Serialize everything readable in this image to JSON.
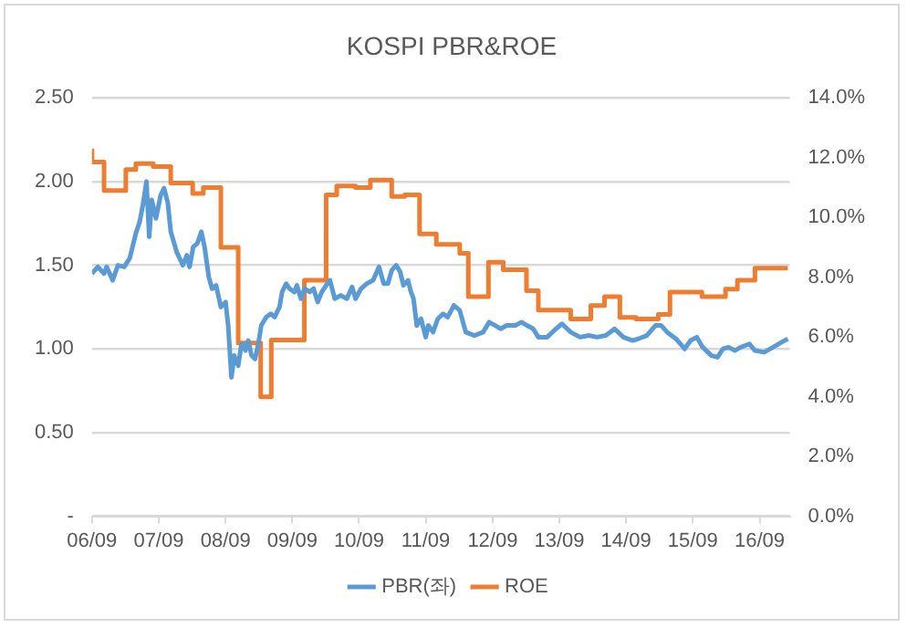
{
  "chart_data": {
    "type": "line",
    "title": "KOSPI PBR&ROE",
    "xlim": [
      "2006-09-01",
      "2017-02-13"
    ],
    "xticks": [
      {
        "value": "2006-09",
        "label": "06/09"
      },
      {
        "value": "2007-09",
        "label": "07/09"
      },
      {
        "value": "2008-09",
        "label": "08/09"
      },
      {
        "value": "2009-09",
        "label": "09/09"
      },
      {
        "value": "2010-09",
        "label": "10/09"
      },
      {
        "value": "2011-09",
        "label": "11/09"
      },
      {
        "value": "2012-09",
        "label": "12/09"
      },
      {
        "value": "2013-09",
        "label": "13/09"
      },
      {
        "value": "2014-09",
        "label": "14/09"
      },
      {
        "value": "2015-09",
        "label": "15/09"
      },
      {
        "value": "2016-09",
        "label": "16/09"
      }
    ],
    "ylim": [
      0,
      2.5
    ],
    "yticks": [
      {
        "value": 0,
        "label": "-"
      },
      {
        "value": 0.5,
        "label": "0.50"
      },
      {
        "value": 1,
        "label": "1.00"
      },
      {
        "value": 1.5,
        "label": "1.50"
      },
      {
        "value": 2,
        "label": "2.00"
      },
      {
        "value": 2.5,
        "label": "2.50"
      }
    ],
    "y2lim": [
      0,
      14
    ],
    "y2ticks": [
      {
        "value": 0,
        "label": "0.0%"
      },
      {
        "value": 2,
        "label": "2.0%"
      },
      {
        "value": 4,
        "label": "4.0%"
      },
      {
        "value": 6,
        "label": "6.0%"
      },
      {
        "value": 8,
        "label": "8.0%"
      },
      {
        "value": 10,
        "label": "10.0%"
      },
      {
        "value": 12,
        "label": "12.0%"
      },
      {
        "value": 14,
        "label": "14.0%"
      }
    ],
    "grid": "y",
    "legend": "bottom",
    "marker": "none",
    "line_style": "solid",
    "series": [
      {
        "name": "PBR(좌)",
        "type": "line",
        "color": "#5b9bd5",
        "x": [
          "2006-09-01",
          "2006-10-03",
          "2006-11-06",
          "2006-11-20",
          "2006-12-23",
          "2007-01-21",
          "2007-02-24",
          "2007-03-26",
          "2007-04-29",
          "2007-05-20",
          "2007-06-08",
          "2007-06-26",
          "2007-07-11",
          "2007-07-25",
          "2007-08-17",
          "2007-09-12",
          "2007-09-30",
          "2007-10-21",
          "2007-11-06",
          "2007-12-08",
          "2008-01-11",
          "2008-02-02",
          "2008-02-17",
          "2008-03-08",
          "2008-03-30",
          "2008-04-21",
          "2008-05-09",
          "2008-06-01",
          "2008-06-19",
          "2008-07-11",
          "2008-08-06",
          "2008-09-01",
          "2008-09-15",
          "2008-10-03",
          "2008-10-18",
          "2008-11-09",
          "2008-11-27",
          "2008-12-19",
          "2009-01-03",
          "2009-01-21",
          "2009-02-09",
          "2009-02-27",
          "2009-03-15",
          "2009-04-11",
          "2009-05-06",
          "2009-05-27",
          "2009-06-23",
          "2009-07-07",
          "2009-07-29",
          "2009-08-17",
          "2009-09-12",
          "2009-09-26",
          "2009-10-18",
          "2009-11-06",
          "2009-12-05",
          "2009-12-26",
          "2010-01-18",
          "2010-02-09",
          "2010-03-05",
          "2010-03-26",
          "2010-04-21",
          "2010-05-24",
          "2010-06-26",
          "2010-07-25",
          "2010-08-13",
          "2010-09-12",
          "2010-10-14",
          "2010-11-17",
          "2010-12-19",
          "2011-01-14",
          "2011-02-06",
          "2011-02-27",
          "2011-03-23",
          "2011-04-14",
          "2011-05-02",
          "2011-05-27",
          "2011-06-12",
          "2011-06-26",
          "2011-07-14",
          "2011-08-06",
          "2011-09-01",
          "2011-09-15",
          "2011-10-11",
          "2011-11-06",
          "2011-12-05",
          "2011-12-30",
          "2012-02-02",
          "2012-03-05",
          "2012-04-07",
          "2012-05-24",
          "2012-07-11",
          "2012-08-13",
          "2012-09-15",
          "2012-10-14",
          "2012-11-17",
          "2013-01-03",
          "2013-02-06",
          "2013-03-08",
          "2013-04-11",
          "2013-05-09",
          "2013-06-26",
          "2013-08-13",
          "2013-09-15",
          "2013-11-02",
          "2013-12-23",
          "2014-02-09",
          "2014-03-26",
          "2014-05-13",
          "2014-06-30",
          "2014-08-17",
          "2014-10-07",
          "2014-11-06",
          "2014-12-23",
          "2015-02-09",
          "2015-03-12",
          "2015-04-14",
          "2015-06-01",
          "2015-07-18",
          "2015-08-20",
          "2015-09-23",
          "2015-10-25",
          "2015-12-12",
          "2016-01-14",
          "2016-02-13",
          "2016-03-15",
          "2016-04-18",
          "2016-05-20",
          "2016-07-07",
          "2016-08-06",
          "2016-09-26",
          "2016-11-13",
          "2016-12-30",
          "2017-02-02"
        ],
        "values": [
          1.45,
          1.49,
          1.45,
          1.49,
          1.41,
          1.5,
          1.49,
          1.54,
          1.69,
          1.76,
          1.87,
          2.0,
          1.67,
          1.89,
          1.78,
          1.92,
          1.96,
          1.87,
          1.7,
          1.58,
          1.5,
          1.56,
          1.49,
          1.61,
          1.63,
          1.7,
          1.61,
          1.43,
          1.36,
          1.38,
          1.25,
          1.28,
          1.14,
          0.83,
          0.96,
          0.9,
          1.03,
          0.99,
          1.05,
          0.96,
          0.94,
          1.03,
          1.14,
          1.19,
          1.21,
          1.19,
          1.25,
          1.34,
          1.39,
          1.36,
          1.34,
          1.38,
          1.3,
          1.36,
          1.34,
          1.36,
          1.28,
          1.34,
          1.38,
          1.41,
          1.3,
          1.32,
          1.3,
          1.37,
          1.3,
          1.36,
          1.39,
          1.41,
          1.49,
          1.39,
          1.39,
          1.47,
          1.5,
          1.46,
          1.38,
          1.41,
          1.34,
          1.3,
          1.14,
          1.18,
          1.07,
          1.14,
          1.1,
          1.18,
          1.21,
          1.19,
          1.26,
          1.23,
          1.1,
          1.08,
          1.1,
          1.16,
          1.14,
          1.12,
          1.14,
          1.14,
          1.16,
          1.14,
          1.12,
          1.07,
          1.07,
          1.12,
          1.15,
          1.1,
          1.07,
          1.08,
          1.07,
          1.08,
          1.12,
          1.07,
          1.05,
          1.06,
          1.08,
          1.14,
          1.14,
          1.1,
          1.06,
          1.0,
          1.05,
          1.07,
          1.01,
          0.96,
          0.95,
          1.0,
          1.01,
          0.99,
          1.01,
          1.03,
          0.99,
          0.98,
          1.01,
          1.04,
          1.06
        ]
      },
      {
        "name": "ROE",
        "type": "step",
        "axis": "y2",
        "color": "#ed7d31",
        "x": [
          "2006-09-01",
          "2006-11-06",
          "2007-03-05",
          "2007-04-29",
          "2007-08-02",
          "2007-11-06",
          "2008-03-05",
          "2008-05-02",
          "2008-08-06",
          "2008-11-09",
          "2009-03-12",
          "2009-05-09",
          "2009-11-06",
          "2010-03-05",
          "2010-05-02",
          "2010-08-13",
          "2010-11-02",
          "2011-02-27",
          "2011-05-09",
          "2011-07-29",
          "2011-10-29",
          "2012-03-05",
          "2012-04-21",
          "2012-08-09",
          "2012-10-29",
          "2013-03-05",
          "2013-05-09",
          "2013-11-02",
          "2014-02-20",
          "2014-05-06",
          "2014-07-29",
          "2014-10-25",
          "2015-02-24",
          "2015-04-29",
          "2015-10-21",
          "2016-02-27",
          "2016-05-02",
          "2016-08-06",
          "2016-09-15",
          "2017-02-02"
        ],
        "values": [
          12.3,
          11.85,
          10.9,
          11.6,
          11.8,
          11.7,
          11.15,
          10.8,
          11.0,
          9.0,
          5.8,
          4.0,
          5.9,
          7.9,
          10.75,
          11.05,
          11.0,
          11.25,
          10.7,
          10.75,
          9.45,
          9.1,
          8.8,
          7.35,
          8.5,
          8.25,
          7.55,
          6.9,
          6.6,
          7.05,
          7.35,
          6.65,
          6.6,
          6.75,
          7.5,
          7.35,
          7.6,
          7.9,
          8.3,
          8.3
        ]
      }
    ]
  }
}
